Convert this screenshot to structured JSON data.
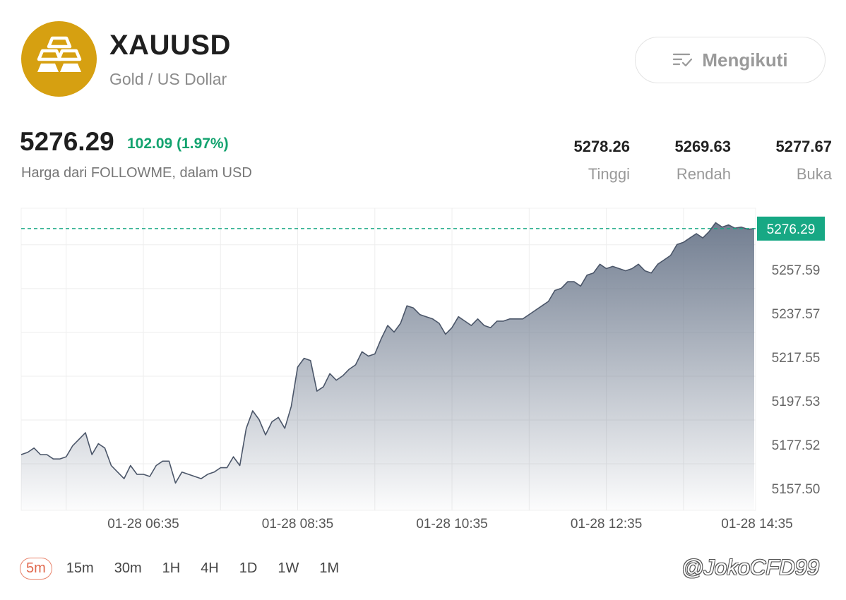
{
  "header": {
    "symbol": "XAUUSD",
    "subtitle": "Gold / US Dollar",
    "follow_label": "Mengikuti",
    "logo_color": "#d6a011"
  },
  "quote": {
    "price": "5276.29",
    "change": "102.09 (1.97%)",
    "source": "Harga dari FOLLOWME, dalam USD"
  },
  "stats": [
    {
      "value": "5278.26",
      "label": "Tinggi"
    },
    {
      "value": "5269.63",
      "label": "Rendah"
    },
    {
      "value": "5277.67",
      "label": "Buka"
    }
  ],
  "chart_data": {
    "type": "area",
    "last_price_label": "5276.29",
    "y_tick_labels": [
      "5257.59",
      "5237.57",
      "5217.55",
      "5197.53",
      "5177.52",
      "5157.50"
    ],
    "x_tick_labels": [
      "01-28 06:35",
      "01-28 08:35",
      "01-28 10:35",
      "01-28 12:35",
      "01-28 14:35"
    ],
    "x_ticks_hours": [
      6.5833,
      8.5833,
      10.5833,
      12.5833,
      14.5833
    ],
    "ylim": [
      5147.5,
      5285.6
    ],
    "x_range_hours": [
      5.0,
      14.5
    ],
    "colors": {
      "line": "#4b5669",
      "fill": "#727e91",
      "last_price": "#17a884"
    },
    "series": [
      {
        "x": [
          5.0,
          5.0833,
          5.1667,
          5.25,
          5.3333,
          5.4167,
          5.5,
          5.5833,
          5.6667,
          5.75,
          5.8333,
          5.9167,
          6.0,
          6.0833,
          6.1667,
          6.25,
          6.3333,
          6.4167,
          6.5,
          6.5833,
          6.6667,
          6.75,
          6.8333,
          6.9167,
          7.0,
          7.0833,
          7.1667,
          7.25,
          7.3333,
          7.4167,
          7.5,
          7.5833,
          7.6667,
          7.75,
          7.8333,
          7.9167,
          8.0,
          8.0833,
          8.1667,
          8.25,
          8.3333,
          8.4167,
          8.5,
          8.5833,
          8.6667,
          8.75,
          8.8333,
          8.9167,
          9.0,
          9.0833,
          9.1667,
          9.25,
          9.3333,
          9.4167,
          9.5,
          9.5833,
          9.6667,
          9.75,
          9.8333,
          9.9167,
          10.0,
          10.0833,
          10.1667,
          10.25,
          10.3333,
          10.4167,
          10.5,
          10.5833,
          10.6667,
          10.75,
          10.8333,
          10.9167,
          11.0,
          11.0833,
          11.1667,
          11.25,
          11.3333,
          11.4167,
          11.5,
          11.5833,
          11.6667,
          11.75,
          11.8333,
          11.9167,
          12.0,
          12.0833,
          12.1667,
          12.25,
          12.3333,
          12.4167,
          12.5,
          12.5833,
          12.6667,
          12.75,
          12.8333,
          12.9167,
          13.0,
          13.0833,
          13.1667,
          13.25,
          13.3333,
          13.4167,
          13.5,
          13.5833,
          13.6667,
          13.75,
          13.8333,
          13.9167,
          14.0,
          14.0833,
          14.1667,
          14.25,
          14.3333,
          14.4167,
          14.5
        ],
        "y": [
          5173.0,
          5174.0,
          5176.0,
          5173.0,
          5173.0,
          5171.0,
          5171.0,
          5172.0,
          5177.0,
          5180.0,
          5183.0,
          5173.0,
          5178.0,
          5176.0,
          5168.0,
          5165.0,
          5162.0,
          5168.0,
          5164.0,
          5164.0,
          5163.0,
          5168.0,
          5170.0,
          5170.0,
          5160.0,
          5165.0,
          5164.0,
          5163.0,
          5162.0,
          5164.0,
          5165.0,
          5167.0,
          5167.0,
          5172.0,
          5168.0,
          5185.0,
          5193.0,
          5189.0,
          5182.0,
          5188.0,
          5190.0,
          5185.0,
          5195.0,
          5213.0,
          5217.0,
          5216.0,
          5202.0,
          5204.0,
          5210.0,
          5207.0,
          5209.0,
          5212.0,
          5214.0,
          5220.0,
          5218.0,
          5219.0,
          5226.0,
          5232.0,
          5229.0,
          5233.0,
          5241.0,
          5240.0,
          5237.0,
          5236.0,
          5235.0,
          5233.0,
          5228.0,
          5231.0,
          5236.0,
          5234.0,
          5232.0,
          5235.0,
          5232.0,
          5231.0,
          5234.0,
          5234.0,
          5235.0,
          5235.0,
          5235.0,
          5237.0,
          5239.0,
          5241.0,
          5243.0,
          5248.0,
          5249.0,
          5252.0,
          5252.0,
          5250.0,
          5255.0,
          5256.0,
          5260.0,
          5258.0,
          5259.0,
          5258.0,
          5257.0,
          5258.0,
          5260.0,
          5257.0,
          5256.0,
          5260.0,
          5262.0,
          5264.0,
          5269.0,
          5270.0,
          5272.0,
          5274.0,
          5272.0,
          5275.0,
          5279.0,
          5277.0,
          5278.0,
          5276.5,
          5277.0,
          5276.0,
          5276.29
        ]
      }
    ]
  },
  "timeframes": [
    {
      "label": "5m",
      "active": true
    },
    {
      "label": "15m",
      "active": false
    },
    {
      "label": "30m",
      "active": false
    },
    {
      "label": "1H",
      "active": false
    },
    {
      "label": "4H",
      "active": false
    },
    {
      "label": "1D",
      "active": false
    },
    {
      "label": "1W",
      "active": false
    },
    {
      "label": "1M",
      "active": false
    }
  ],
  "watermark": "@JokoCFD99"
}
